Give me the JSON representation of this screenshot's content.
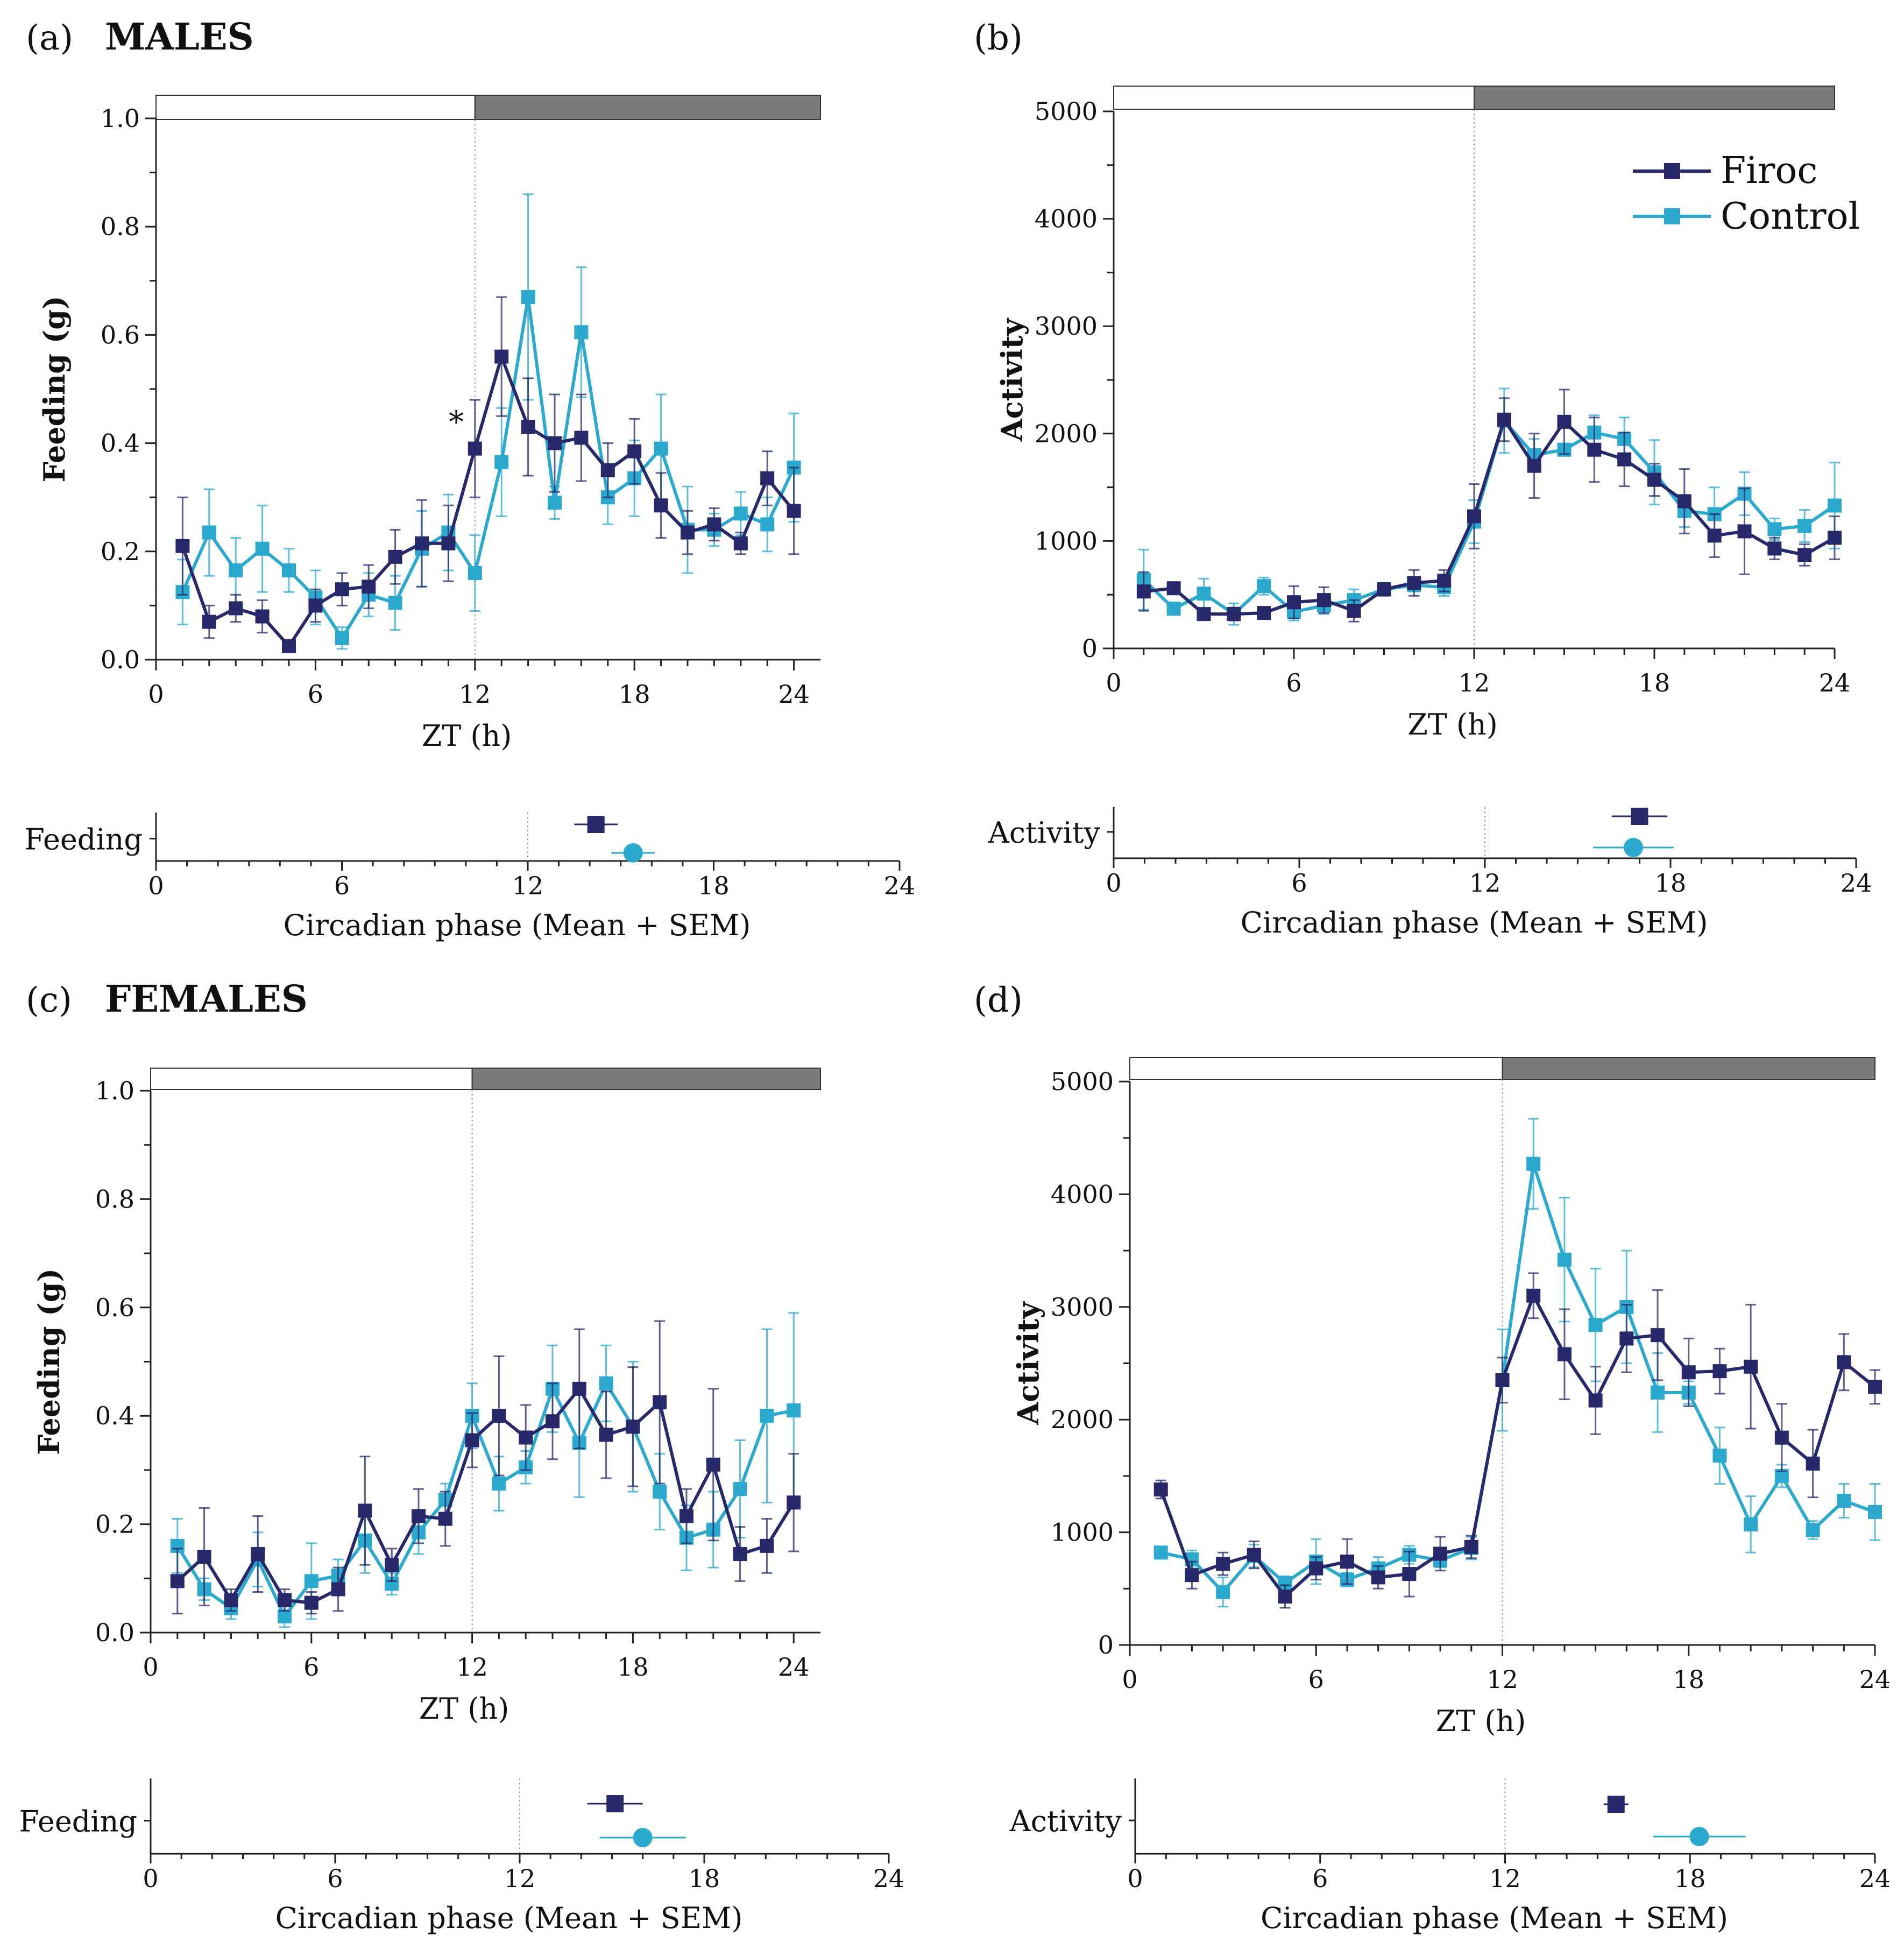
{
  "figure": {
    "panels": [
      {
        "tag": "(a)",
        "sex": "MALES"
      },
      {
        "tag": "(b)",
        "sex": ""
      },
      {
        "tag": "(c)",
        "sex": "FEMALES"
      },
      {
        "tag": "(d)",
        "sex": ""
      }
    ],
    "legend": {
      "firoc": "Firoc",
      "control": "Control"
    },
    "colors": {
      "firoc": "#27296b",
      "control": "#2ba9cf",
      "dark_bar": "#7a7a7a",
      "light_bar": "#ffffff"
    }
  },
  "chart_data": [
    {
      "id": "a",
      "type": "line",
      "xlabel": "ZT (h)",
      "ylabel": "Feeding (g)",
      "xlim": [
        0,
        25
      ],
      "ylim": [
        0,
        1.0
      ],
      "xticks": [
        "0",
        "6",
        "12",
        "18",
        "24"
      ],
      "xtick_values": [
        0,
        6,
        12,
        18,
        24
      ],
      "yticks": [
        "0.0",
        "0.2",
        "0.4",
        "0.6",
        "0.8",
        "1.0"
      ],
      "ytick_values": [
        0,
        0.2,
        0.4,
        0.6,
        0.8,
        1.0
      ],
      "annotation": {
        "text": "*",
        "x": 11.5,
        "y": 0.45
      },
      "x": [
        1,
        2,
        3,
        4,
        5,
        6,
        7,
        8,
        9,
        10,
        11,
        12,
        13,
        14,
        15,
        16,
        17,
        18,
        19,
        20,
        21,
        22,
        23,
        24
      ],
      "series": [
        {
          "name": "Firoc",
          "values": [
            0.21,
            0.07,
            0.095,
            0.08,
            0.025,
            0.1,
            0.13,
            0.135,
            0.19,
            0.215,
            0.215,
            0.39,
            0.56,
            0.43,
            0.4,
            0.41,
            0.35,
            0.385,
            0.285,
            0.235,
            0.25,
            0.215,
            0.335,
            0.275
          ],
          "err": [
            0.09,
            0.03,
            0.025,
            0.03,
            0.01,
            0.03,
            0.03,
            0.04,
            0.05,
            0.08,
            0.07,
            0.09,
            0.11,
            0.09,
            0.09,
            0.08,
            0.05,
            0.06,
            0.06,
            0.04,
            0.03,
            0.02,
            0.05,
            0.08
          ]
        },
        {
          "name": "Control",
          "values": [
            0.125,
            0.235,
            0.165,
            0.205,
            0.165,
            0.115,
            0.04,
            0.12,
            0.105,
            0.205,
            0.235,
            0.16,
            0.365,
            0.67,
            0.29,
            0.605,
            0.3,
            0.335,
            0.39,
            0.24,
            0.24,
            0.27,
            0.25,
            0.355
          ],
          "err": [
            0.06,
            0.08,
            0.06,
            0.08,
            0.04,
            0.05,
            0.02,
            0.04,
            0.05,
            0.07,
            0.07,
            0.07,
            0.1,
            0.19,
            0.03,
            0.12,
            0.05,
            0.07,
            0.1,
            0.08,
            0.03,
            0.04,
            0.05,
            0.1
          ]
        }
      ],
      "phase": {
        "label": "Feeding",
        "xlabel": "Circadian phase (Mean + SEM)",
        "xticks": [
          "0",
          "6",
          "12",
          "18",
          "24"
        ],
        "xtick_values": [
          0,
          6,
          12,
          18,
          24
        ],
        "firoc": {
          "mean": 14.2,
          "sem": 0.7
        },
        "control": {
          "mean": 15.4,
          "sem": 0.7
        }
      }
    },
    {
      "id": "b",
      "type": "line",
      "xlabel": "ZT (h)",
      "ylabel": "Activity",
      "xlim": [
        0,
        24
      ],
      "ylim": [
        0,
        5000
      ],
      "xticks": [
        "0",
        "6",
        "12",
        "18",
        "24"
      ],
      "xtick_values": [
        0,
        6,
        12,
        18,
        24
      ],
      "yticks": [
        "0",
        "1000",
        "2000",
        "3000",
        "4000",
        "5000"
      ],
      "ytick_values": [
        0,
        1000,
        2000,
        3000,
        4000,
        5000
      ],
      "x": [
        1,
        2,
        3,
        4,
        5,
        6,
        7,
        8,
        9,
        10,
        11,
        12,
        13,
        14,
        15,
        16,
        17,
        18,
        19,
        20,
        21,
        22,
        23,
        24
      ],
      "series": [
        {
          "name": "Firoc",
          "values": [
            530,
            560,
            320,
            320,
            330,
            430,
            450,
            350,
            550,
            610,
            630,
            1230,
            2130,
            1700,
            2110,
            1850,
            1760,
            1570,
            1370,
            1050,
            1090,
            930,
            870,
            1030
          ],
          "err": [
            180,
            40,
            40,
            60,
            40,
            150,
            120,
            100,
            60,
            120,
            100,
            300,
            200,
            300,
            300,
            300,
            250,
            150,
            300,
            200,
            400,
            100,
            100,
            200
          ]
        },
        {
          "name": "Control",
          "values": [
            640,
            370,
            510,
            320,
            580,
            340,
            400,
            450,
            550,
            590,
            570,
            1180,
            2120,
            1800,
            1850,
            2010,
            1950,
            1640,
            1280,
            1250,
            1440,
            1110,
            1140,
            1330
          ],
          "err": [
            280,
            40,
            140,
            100,
            80,
            80,
            80,
            100,
            50,
            60,
            80,
            200,
            300,
            150,
            50,
            160,
            200,
            300,
            150,
            250,
            200,
            100,
            150,
            400
          ]
        }
      ],
      "phase": {
        "label": "Activity",
        "xlabel": "Circadian phase (Mean + SEM)",
        "xticks": [
          "0",
          "6",
          "12",
          "18",
          "24"
        ],
        "xtick_values": [
          0,
          6,
          12,
          18,
          24
        ],
        "firoc": {
          "mean": 17.0,
          "sem": 0.9
        },
        "control": {
          "mean": 16.8,
          "sem": 1.3
        }
      }
    },
    {
      "id": "c",
      "type": "line",
      "xlabel": "ZT (h)",
      "ylabel": "Feeding (g)",
      "xlim": [
        0,
        25
      ],
      "ylim": [
        0,
        1.0
      ],
      "xticks": [
        "0",
        "6",
        "12",
        "18",
        "24"
      ],
      "xtick_values": [
        0,
        6,
        12,
        18,
        24
      ],
      "yticks": [
        "0.0",
        "0.2",
        "0.4",
        "0.6",
        "0.8",
        "1.0"
      ],
      "ytick_values": [
        0,
        0.2,
        0.4,
        0.6,
        0.8,
        1.0
      ],
      "x": [
        1,
        2,
        3,
        4,
        5,
        6,
        7,
        8,
        9,
        10,
        11,
        12,
        13,
        14,
        15,
        16,
        17,
        18,
        19,
        20,
        21,
        22,
        23,
        24
      ],
      "series": [
        {
          "name": "Firoc",
          "values": [
            0.095,
            0.14,
            0.06,
            0.145,
            0.06,
            0.055,
            0.08,
            0.225,
            0.125,
            0.215,
            0.21,
            0.355,
            0.4,
            0.36,
            0.39,
            0.45,
            0.365,
            0.38,
            0.425,
            0.215,
            0.31,
            0.145,
            0.16,
            0.24
          ],
          "err": [
            0.06,
            0.09,
            0.02,
            0.07,
            0.02,
            0.02,
            0.04,
            0.1,
            0.03,
            0.05,
            0.05,
            0.05,
            0.11,
            0.06,
            0.07,
            0.11,
            0.08,
            0.11,
            0.15,
            0.05,
            0.14,
            0.05,
            0.05,
            0.09
          ]
        },
        {
          "name": "Control",
          "values": [
            0.16,
            0.08,
            0.045,
            0.135,
            0.03,
            0.095,
            0.105,
            0.17,
            0.09,
            0.185,
            0.245,
            0.4,
            0.275,
            0.305,
            0.45,
            0.35,
            0.46,
            0.38,
            0.26,
            0.175,
            0.19,
            0.265,
            0.4,
            0.41
          ],
          "err": [
            0.05,
            0.02,
            0.02,
            0.05,
            0.02,
            0.07,
            0.03,
            0.06,
            0.02,
            0.04,
            0.03,
            0.06,
            0.05,
            0.03,
            0.08,
            0.1,
            0.07,
            0.12,
            0.07,
            0.06,
            0.07,
            0.09,
            0.16,
            0.18
          ]
        }
      ],
      "phase": {
        "label": "Feeding",
        "xlabel": "Circadian phase (Mean + SEM)",
        "xticks": [
          "0",
          "6",
          "12",
          "18",
          "24"
        ],
        "xtick_values": [
          0,
          6,
          12,
          18,
          24
        ],
        "firoc": {
          "mean": 15.1,
          "sem": 0.9
        },
        "control": {
          "mean": 16.0,
          "sem": 1.4
        }
      }
    },
    {
      "id": "d",
      "type": "line",
      "xlabel": "ZT (h)",
      "ylabel": "Activity",
      "xlim": [
        0,
        24
      ],
      "ylim": [
        0,
        5000
      ],
      "xticks": [
        "0",
        "6",
        "12",
        "18",
        "24"
      ],
      "xtick_values": [
        0,
        6,
        12,
        18,
        24
      ],
      "yticks": [
        "0",
        "1000",
        "2000",
        "3000",
        "4000",
        "5000"
      ],
      "ytick_values": [
        0,
        1000,
        2000,
        3000,
        4000,
        5000
      ],
      "x": [
        1,
        2,
        3,
        4,
        5,
        6,
        7,
        8,
        9,
        10,
        11,
        12,
        13,
        14,
        15,
        16,
        17,
        18,
        19,
        20,
        21,
        22,
        23,
        24
      ],
      "series": [
        {
          "name": "Firoc",
          "values": [
            1380,
            620,
            720,
            800,
            430,
            680,
            740,
            600,
            630,
            810,
            870,
            2350,
            3100,
            2580,
            2170,
            2720,
            2750,
            2420,
            2430,
            2470,
            1840,
            1610,
            2510,
            2290
          ],
          "err": [
            80,
            120,
            100,
            120,
            100,
            100,
            200,
            100,
            200,
            150,
            100,
            200,
            200,
            400,
            300,
            300,
            400,
            300,
            200,
            550,
            300,
            300,
            250,
            150
          ]
        },
        {
          "name": "Control",
          "values": [
            820,
            760,
            470,
            790,
            550,
            740,
            580,
            680,
            800,
            750,
            860,
            2350,
            4270,
            3420,
            2840,
            3000,
            2240,
            2240,
            1680,
            1070,
            1500,
            1020,
            1280,
            1180
          ],
          "err": [
            50,
            80,
            130,
            100,
            60,
            200,
            60,
            100,
            80,
            60,
            100,
            450,
            400,
            550,
            500,
            500,
            350,
            100,
            250,
            250,
            100,
            80,
            150,
            250
          ]
        }
      ],
      "phase": {
        "label": "Activity",
        "xlabel": "Circadian phase (Mean + SEM)",
        "xticks": [
          "0",
          "6",
          "12",
          "18",
          "24"
        ],
        "xtick_values": [
          0,
          6,
          12,
          18,
          24
        ],
        "firoc": {
          "mean": 15.6,
          "sem": 0.4
        },
        "control": {
          "mean": 18.3,
          "sem": 1.5
        }
      }
    }
  ]
}
